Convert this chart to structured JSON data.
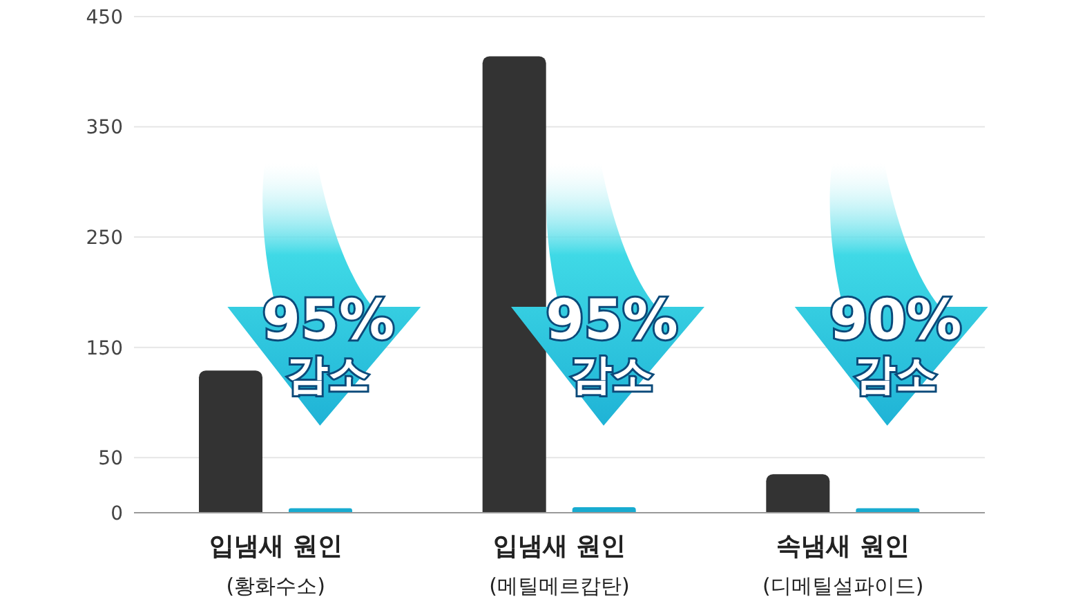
{
  "chart_data": {
    "type": "bar",
    "categories": [
      "입냄새 원인\n(황화수소)",
      "입냄새 원인\n(메틸메르캅탄)",
      "속냄새 원인\n(디메틸설파이드)"
    ],
    "series": [
      {
        "color": "#333333",
        "values": [
          129,
          414,
          35
        ]
      },
      {
        "color": "#18abd0",
        "values": [
          4,
          5,
          4
        ]
      }
    ],
    "ylim": [
      0,
      450
    ],
    "yticks": [
      0,
      50,
      150,
      250,
      350,
      450
    ],
    "grid": "y",
    "annotations": [
      "95%\n감소",
      "95%\n감소",
      "90%\n감소"
    ]
  }
}
